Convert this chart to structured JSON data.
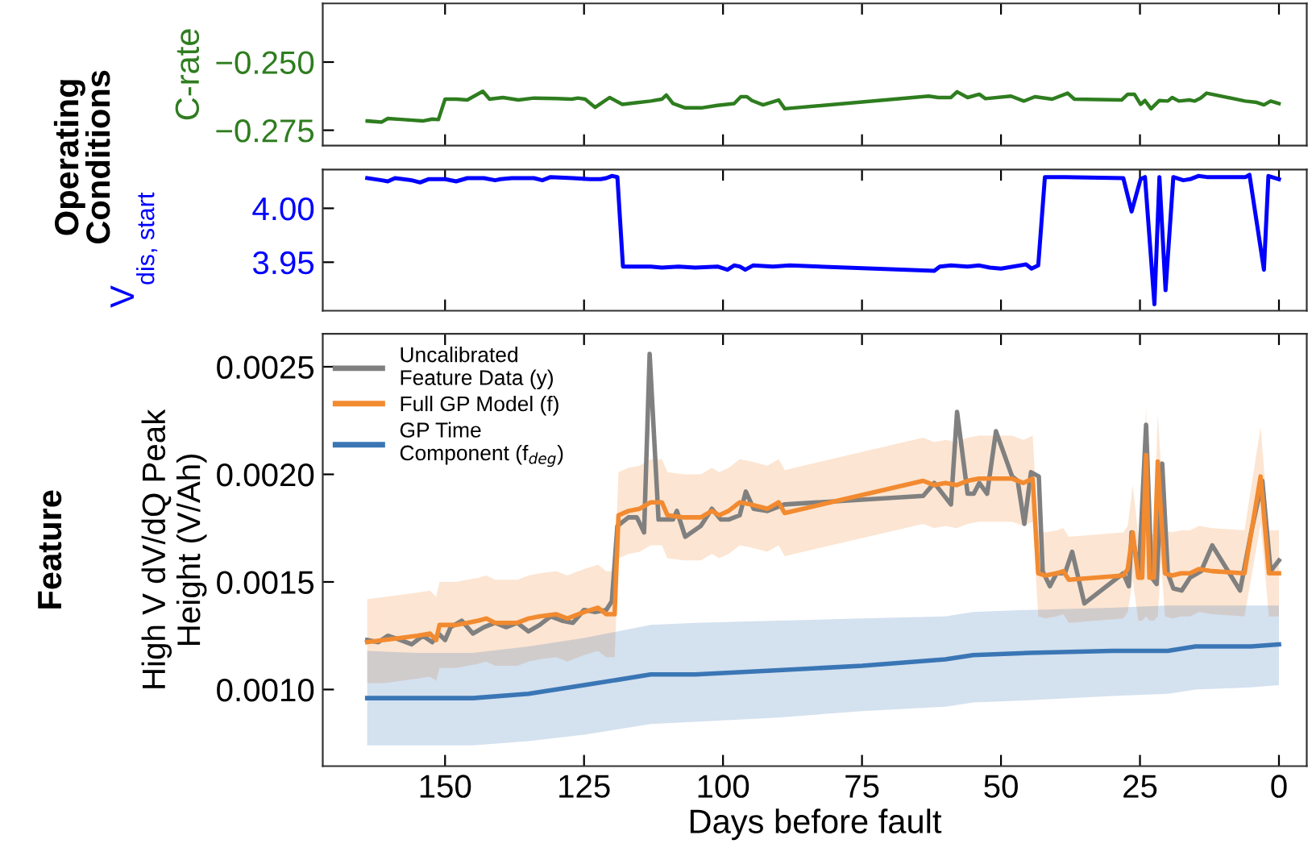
{
  "chart_data": [
    {
      "type": "line",
      "ylabel": "C-rate",
      "annotations": [
        "Operating\nConditions"
      ],
      "tick_labels": "y",
      "x": [
        164,
        161.4,
        160.3,
        157.4,
        154,
        152.3,
        151.2,
        150,
        148,
        146,
        143.2,
        142,
        139.6,
        136.8,
        134,
        130,
        127.2,
        126.1,
        124.8,
        123,
        120.4,
        118.1,
        116,
        113,
        111,
        110.2,
        109,
        106.8,
        103.9,
        101,
        98,
        96.8,
        95.7,
        94.8,
        92.8,
        90,
        88.9,
        63,
        61.3,
        59,
        57.9,
        56,
        53.9,
        52.8,
        48.2,
        45.9,
        43.9,
        40.8,
        38,
        36.8,
        28.3,
        27.2,
        26,
        24.9,
        24.1,
        23,
        21.5,
        20,
        19.2,
        18,
        16.1,
        15.2,
        14.1,
        13,
        6.1,
        4,
        2.7,
        1.5,
        0
      ],
      "series": [
        {
          "color": "#2e7d1f",
          "values": [
            -0.2716,
            -0.272,
            -0.2707,
            -0.2711,
            -0.2716,
            -0.2709,
            -0.2711,
            -0.2636,
            -0.2636,
            -0.2639,
            -0.2607,
            -0.2636,
            -0.263,
            -0.2639,
            -0.2632,
            -0.2634,
            -0.2636,
            -0.2632,
            -0.2636,
            -0.2666,
            -0.263,
            -0.2655,
            -0.265,
            -0.2643,
            -0.2636,
            -0.2621,
            -0.2652,
            -0.2668,
            -0.2668,
            -0.2659,
            -0.2652,
            -0.2627,
            -0.2627,
            -0.2641,
            -0.2657,
            -0.2639,
            -0.2671,
            -0.2625,
            -0.263,
            -0.263,
            -0.2609,
            -0.263,
            -0.2618,
            -0.2634,
            -0.2625,
            -0.2643,
            -0.2627,
            -0.2636,
            -0.2614,
            -0.2636,
            -0.2639,
            -0.2618,
            -0.2618,
            -0.2655,
            -0.2641,
            -0.2671,
            -0.2641,
            -0.2643,
            -0.263,
            -0.2643,
            -0.2639,
            -0.2643,
            -0.2632,
            -0.2614,
            -0.2643,
            -0.2648,
            -0.2657,
            -0.2643,
            -0.2652
          ]
        }
      ],
      "xlim": [
        172,
        -5
      ],
      "xticks": [
        150,
        125,
        100,
        75,
        50,
        25,
        0
      ],
      "ylim": [
        -0.2806,
        -0.2285
      ],
      "yticks": [
        {
          "value": -0.275,
          "label": "−0.275"
        },
        {
          "value": -0.25,
          "label": "−0.250"
        }
      ],
      "line_style": "solid",
      "marker": "none",
      "grid": false,
      "legend": false
    },
    {
      "type": "line",
      "ylabel": "V$_{dis, start}$",
      "tick_labels": "y",
      "x": [
        164,
        161.4,
        160.3,
        159,
        156,
        154.5,
        153,
        150,
        148,
        146,
        143,
        141,
        140,
        138,
        134,
        132.5,
        131,
        127,
        124,
        122,
        121,
        120,
        119,
        118,
        113,
        111,
        108,
        105,
        101,
        99.2,
        98,
        97,
        96,
        94.6,
        91,
        88,
        62,
        61,
        59,
        56,
        53.9,
        52,
        50,
        45.5,
        44.5,
        43.3,
        42.1,
        40,
        38.5,
        28,
        26.5,
        24.9,
        24.1,
        22.4,
        21.5,
        20.4,
        19,
        17.2,
        16,
        14.5,
        13,
        6,
        5.3,
        2.7,
        1.9,
        0
      ],
      "series": [
        {
          "color": "#0000ff",
          "values": [
            4.028,
            4.026,
            4.025,
            4.028,
            4.026,
            4.024,
            4.027,
            4.027,
            4.025,
            4.028,
            4.028,
            4.026,
            4.027,
            4.028,
            4.028,
            4.026,
            4.029,
            4.028,
            4.027,
            4.027,
            4.028,
            4.03,
            4.029,
            3.946,
            3.946,
            3.945,
            3.946,
            3.945,
            3.946,
            3.943,
            3.947,
            3.946,
            3.943,
            3.947,
            3.946,
            3.947,
            3.942,
            3.946,
            3.947,
            3.946,
            3.947,
            3.945,
            3.944,
            3.948,
            3.944,
            3.947,
            4.029,
            4.029,
            4.029,
            4.028,
            3.997,
            4.027,
            4.029,
            3.911,
            4.029,
            3.924,
            4.029,
            4.026,
            4.027,
            4.03,
            4.029,
            4.029,
            4.031,
            3.943,
            4.03,
            4.027
          ]
        }
      ],
      "xlim": [
        172,
        -5
      ],
      "xticks": [
        150,
        125,
        100,
        75,
        50,
        25,
        0
      ],
      "ylim": [
        3.905,
        4.036
      ],
      "yticks": [
        3.95,
        {
          "value": 4.0,
          "label": "4.00"
        }
      ],
      "line_style": "solid",
      "marker": "none",
      "grid": false,
      "legend": false
    },
    {
      "type": "line",
      "xlabel": "Days before fault",
      "ylabel": "High V dV/dQ Peak\nHeight (V/Ah)",
      "annotations": [
        "Feature"
      ],
      "series": [
        {
          "name": "Uncalibrated\nFeature Data (y)",
          "color": "#808080",
          "x": [
            164,
            162,
            160.3,
            158,
            156,
            154,
            152.3,
            151.2,
            150,
            149,
            147,
            145,
            143,
            141,
            139,
            137,
            135,
            133,
            131,
            129,
            127,
            125,
            123,
            121,
            120,
            119,
            117,
            115.5,
            114.2,
            113.2,
            111.6,
            109,
            108.3,
            106.8,
            104,
            102,
            100.4,
            99,
            97,
            95.9,
            94.5,
            92,
            89,
            64,
            62,
            59,
            57.9,
            56,
            54.9,
            53.9,
            52.5,
            50.9,
            48,
            47,
            45.8,
            44.6,
            43.2,
            42.5,
            41.2,
            40,
            38.5,
            37.2,
            35,
            28,
            27,
            26.5,
            25.2,
            23.9,
            22.9,
            22,
            21,
            20,
            19,
            17.5,
            16,
            14,
            12,
            7,
            5,
            3,
            1.5,
            0
          ],
          "values": [
            0.00123,
            0.00122,
            0.00125,
            0.00123,
            0.00121,
            0.00125,
            0.00122,
            0.00126,
            0.00123,
            0.00129,
            0.00132,
            0.00126,
            0.00129,
            0.00131,
            0.00129,
            0.00131,
            0.00127,
            0.0013,
            0.00134,
            0.00132,
            0.00131,
            0.00137,
            0.00136,
            0.00137,
            0.00141,
            0.00176,
            0.0018,
            0.0018,
            0.00173,
            0.00256,
            0.00179,
            0.00179,
            0.00183,
            0.00171,
            0.00176,
            0.00184,
            0.00179,
            0.00179,
            0.00181,
            0.00192,
            0.00184,
            0.00183,
            0.00186,
            0.0019,
            0.00196,
            0.00186,
            0.00229,
            0.00191,
            0.00191,
            0.00196,
            0.00191,
            0.0022,
            0.00199,
            0.00197,
            0.00177,
            0.00201,
            0.00199,
            0.00155,
            0.00148,
            0.00154,
            0.00154,
            0.00164,
            0.0014,
            0.00154,
            0.00148,
            0.00173,
            0.00154,
            0.00223,
            0.00152,
            0.00149,
            0.00205,
            0.00154,
            0.00147,
            0.00146,
            0.00152,
            0.00155,
            0.00167,
            0.00146,
            0.00173,
            0.00197,
            0.00155,
            0.0016
          ]
        },
        {
          "name": "Full GP Model (f)",
          "color": "#f28a30",
          "x": [
            164,
            161,
            158,
            155,
            152.7,
            151.6,
            151,
            148,
            146,
            144,
            142.6,
            141,
            139,
            137,
            135,
            133,
            130,
            128,
            127,
            125,
            122.5,
            121,
            119.5,
            118.8,
            117,
            115,
            113,
            111,
            110,
            107,
            104,
            102,
            100.7,
            99,
            97,
            95,
            92,
            90,
            88.9,
            64,
            62,
            60,
            58,
            56,
            54,
            52,
            48,
            46,
            44.3,
            43.3,
            42,
            40,
            38.8,
            37.8,
            28,
            27.2,
            26.3,
            25.3,
            24.6,
            23.9,
            23.3,
            22.5,
            21.8,
            21.2,
            20.5,
            19.2,
            17.6,
            16,
            14.4,
            12,
            6.2,
            3.3,
            1.8,
            0
          ],
          "values": [
            0.00122,
            0.00123,
            0.00124,
            0.00125,
            0.00126,
            0.00123,
            0.0013,
            0.0013,
            0.00131,
            0.00132,
            0.00133,
            0.00131,
            0.00131,
            0.00131,
            0.00133,
            0.00134,
            0.00135,
            0.00133,
            0.00134,
            0.00136,
            0.00138,
            0.00135,
            0.00135,
            0.00181,
            0.00183,
            0.00184,
            0.00187,
            0.00187,
            0.00181,
            0.0018,
            0.0018,
            0.00183,
            0.00181,
            0.00183,
            0.00187,
            0.00186,
            0.00184,
            0.00187,
            0.00182,
            0.00197,
            0.00195,
            0.00196,
            0.00195,
            0.00197,
            0.00198,
            0.00198,
            0.00198,
            0.00196,
            0.00198,
            0.00154,
            0.00153,
            0.00154,
            0.00155,
            0.00151,
            0.00153,
            0.00156,
            0.00173,
            0.00152,
            0.00152,
            0.00209,
            0.00152,
            0.00152,
            0.00206,
            0.00181,
            0.00154,
            0.00153,
            0.00154,
            0.00154,
            0.00156,
            0.00155,
            0.00154,
            0.00199,
            0.00154,
            0.00154
          ],
          "upper": [
            0.00142,
            0.00143,
            0.00144,
            0.00145,
            0.00146,
            0.00143,
            0.0015,
            0.0015,
            0.00151,
            0.00152,
            0.00153,
            0.00151,
            0.00151,
            0.00151,
            0.00153,
            0.00154,
            0.00155,
            0.00153,
            0.00154,
            0.00156,
            0.00158,
            0.00155,
            0.00155,
            0.00201,
            0.00203,
            0.00204,
            0.00207,
            0.00207,
            0.00201,
            0.002,
            0.002,
            0.00203,
            0.00201,
            0.00203,
            0.00207,
            0.00206,
            0.00204,
            0.00207,
            0.00202,
            0.00217,
            0.00215,
            0.00216,
            0.00215,
            0.00217,
            0.00218,
            0.00218,
            0.00218,
            0.00216,
            0.00218,
            0.00174,
            0.00173,
            0.00174,
            0.00175,
            0.00171,
            0.00173,
            0.00176,
            0.00195,
            0.00172,
            0.00172,
            0.00232,
            0.00172,
            0.00172,
            0.00228,
            0.00203,
            0.00174,
            0.00173,
            0.00174,
            0.00174,
            0.00176,
            0.00175,
            0.00174,
            0.00222,
            0.00174,
            0.00174
          ],
          "lower": [
            0.00103,
            0.00103,
            0.00104,
            0.00105,
            0.00106,
            0.00104,
            0.0011,
            0.0011,
            0.00111,
            0.00112,
            0.00113,
            0.00111,
            0.00111,
            0.00111,
            0.00113,
            0.00114,
            0.00115,
            0.00113,
            0.00114,
            0.00116,
            0.00118,
            0.00115,
            0.00115,
            0.00161,
            0.00163,
            0.00164,
            0.00167,
            0.00167,
            0.00161,
            0.0016,
            0.0016,
            0.00163,
            0.00161,
            0.00163,
            0.00167,
            0.00166,
            0.00164,
            0.00167,
            0.00162,
            0.00177,
            0.00175,
            0.00176,
            0.00175,
            0.00177,
            0.00178,
            0.00178,
            0.00178,
            0.00176,
            0.00178,
            0.00134,
            0.00133,
            0.00134,
            0.00135,
            0.00131,
            0.00133,
            0.00136,
            0.00151,
            0.00132,
            0.00132,
            0.00134,
            0.00132,
            0.00132,
            0.00134,
            0.00159,
            0.00134,
            0.00133,
            0.00134,
            0.00134,
            0.00136,
            0.00135,
            0.00134,
            0.00177,
            0.00134,
            0.00134
          ]
        },
        {
          "name": "GP Time\nComponent (f$_{deg}$)",
          "color": "#3a76b5",
          "x": [
            164,
            155,
            145,
            135,
            125,
            113,
            105,
            90,
            75,
            60,
            55,
            45,
            30,
            20,
            15,
            5,
            0
          ],
          "values": [
            0.00096,
            0.00096,
            0.00096,
            0.00098,
            0.00102,
            0.00107,
            0.00107,
            0.00109,
            0.00111,
            0.00114,
            0.00116,
            0.00117,
            0.00118,
            0.00118,
            0.0012,
            0.0012,
            0.00121
          ],
          "upper": [
            0.00118,
            0.00117,
            0.00117,
            0.0012,
            0.00124,
            0.0013,
            0.00131,
            0.00132,
            0.00133,
            0.00134,
            0.00136,
            0.00137,
            0.00138,
            0.00139,
            0.00139,
            0.00139,
            0.00139
          ],
          "lower": [
            0.00074,
            0.00074,
            0.00074,
            0.00076,
            0.00079,
            0.00084,
            0.00085,
            0.00087,
            0.0009,
            0.00092,
            0.00094,
            0.00095,
            0.00097,
            0.00098,
            0.001,
            0.00101,
            0.00102
          ]
        }
      ],
      "xlim": [
        172,
        -5
      ],
      "xticks": [
        150,
        125,
        100,
        75,
        50,
        25,
        0
      ],
      "ylim": [
        0.000644,
        0.002653
      ],
      "yticks": [
        {
          "value": 0.001,
          "label": "0.0010"
        },
        0.0015,
        {
          "value": 0.002,
          "label": "0.0020"
        },
        0.0025
      ],
      "line_style": "solid",
      "marker": "none",
      "grid": false,
      "legend": "top left"
    }
  ]
}
